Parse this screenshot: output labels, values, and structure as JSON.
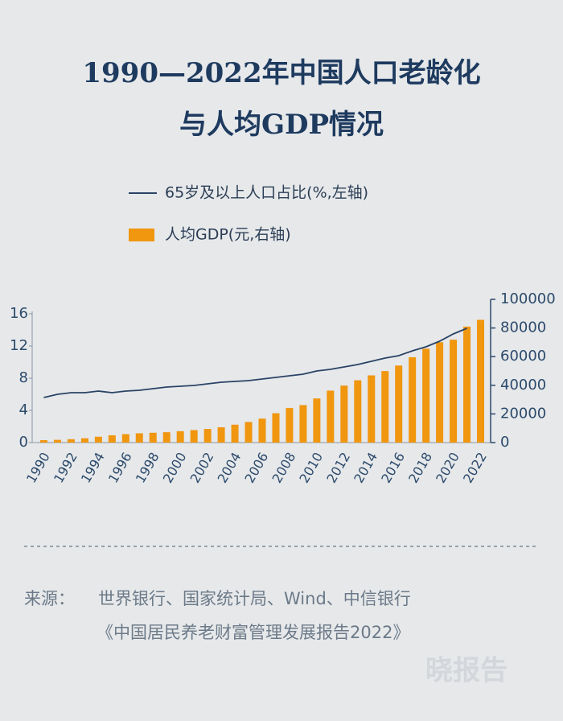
{
  "chart_data": {
    "type": "bar-line",
    "title": [
      "1990—2022年中国人口老龄化",
      "与人均GDP情况"
    ],
    "categories": [
      "1990",
      null,
      "1992",
      null,
      "1994",
      null,
      "1996",
      null,
      "1998",
      null,
      "2000",
      null,
      "2002",
      null,
      "2004",
      null,
      "2006",
      null,
      "2008",
      null,
      "2010",
      null,
      "2012",
      null,
      "2014",
      null,
      "2016",
      null,
      "2018",
      null,
      "2020",
      null,
      "2022"
    ],
    "series": [
      {
        "name": "65岁及以上人口占比(%,左轴)",
        "color": "#2a4365",
        "kind": "line",
        "axis": "y",
        "values": [
          5.6,
          6.0,
          6.2,
          6.2,
          6.4,
          6.2,
          6.4,
          6.5,
          6.7,
          6.9,
          7.0,
          7.1,
          7.3,
          7.5,
          7.6,
          7.7,
          7.9,
          8.1,
          8.3,
          8.5,
          8.9,
          9.1,
          9.4,
          9.7,
          10.1,
          10.5,
          10.8,
          11.4,
          11.9,
          12.6,
          13.5,
          14.2,
          null
        ]
      },
      {
        "name": "人均GDP(元,右轴)",
        "color": "#f0960f",
        "kind": "bar",
        "axis": "y2",
        "values": [
          1663,
          1912,
          2334,
          3027,
          4081,
          5091,
          5898,
          6481,
          6860,
          7229,
          7942,
          8717,
          9506,
          10666,
          12487,
          14368,
          16738,
          20494,
          24100,
          26180,
          30808,
          36277,
          39771,
          43497,
          46912,
          49922,
          53783,
          59592,
          65534,
          70078,
          71828,
          80976,
          85698
        ]
      }
    ],
    "ylim": [
      0,
      17.8
    ],
    "yticks": [
      0,
      4,
      8,
      12,
      16
    ],
    "y2lim": [
      0,
      100000
    ],
    "y2ticks": [
      0,
      20000,
      40000,
      60000,
      80000,
      100000
    ],
    "source_label": "来源：",
    "source_lines": [
      "世界银行、国家统计局、Wind、中信银行",
      "《中国居民养老财富管理发展报告2022》"
    ],
    "watermark": "晓报告"
  }
}
